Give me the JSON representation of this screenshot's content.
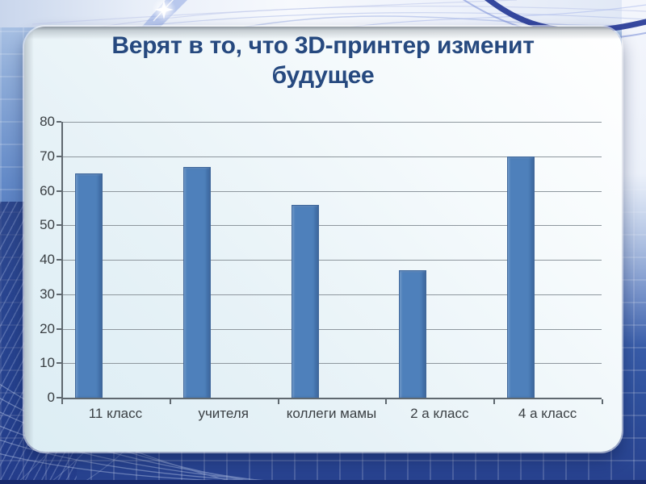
{
  "slide": {
    "title_lines": [
      "Верят в то, что 3D-принтер изменит",
      "будущее"
    ]
  },
  "chart_data": {
    "type": "bar",
    "title": "Верят в то, что 3D-принтер изменит будущее",
    "categories": [
      "11 класс",
      "учителя",
      "коллеги мамы",
      "2 а класс",
      "4 а класс"
    ],
    "values": [
      65,
      67,
      56,
      37,
      70
    ],
    "xlabel": "",
    "ylabel": "",
    "ylim": [
      0,
      80
    ],
    "ytick_step": 10,
    "grid": true,
    "legend": false,
    "colors": {
      "title": "#26497f",
      "bar": "#4e80bb",
      "bar_border": "#40689c",
      "gridline": "#8e979e",
      "axis": "#5f686f",
      "axis_text": "#3a3f43"
    }
  }
}
